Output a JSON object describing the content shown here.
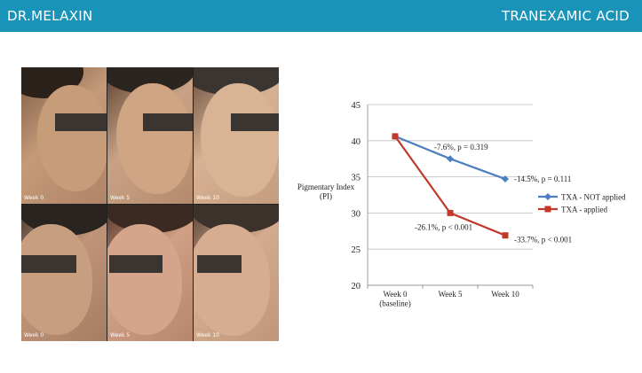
{
  "header": {
    "brand": "DR.MELAXIN",
    "topic": "TRANEXAMIC ACID",
    "bg_color": "#1a93b8"
  },
  "photos": [
    {
      "label": "Week 0"
    },
    {
      "label": "Week 5"
    },
    {
      "label": "Week 10"
    },
    {
      "label": "Week 0"
    },
    {
      "label": "Week 5"
    },
    {
      "label": "Week 10"
    }
  ],
  "chart_data": {
    "type": "line",
    "categories": [
      "Week 0\n(baseline)",
      "Week 5",
      "Week 10"
    ],
    "ylabel": "Pigmentary Index\n(PI)",
    "ylim": [
      20,
      45
    ],
    "yticks": [
      20,
      25,
      30,
      35,
      40,
      45
    ],
    "grid": true,
    "legend_position": "right",
    "series": [
      {
        "name": "TXA - NOT applied",
        "color": "#4a7fc1",
        "marker": "diamond",
        "values": [
          40.6,
          37.5,
          34.7
        ],
        "annotations": [
          "",
          "-7.6%, p = 0.319",
          "-14.5%, p = 0.111"
        ]
      },
      {
        "name": "TXA - applied",
        "color": "#c0392b",
        "marker": "square",
        "values": [
          40.6,
          30.0,
          26.9
        ],
        "annotations": [
          "",
          "-26.1%, p < 0.001",
          "-33.7%, p < 0.001"
        ]
      }
    ]
  }
}
